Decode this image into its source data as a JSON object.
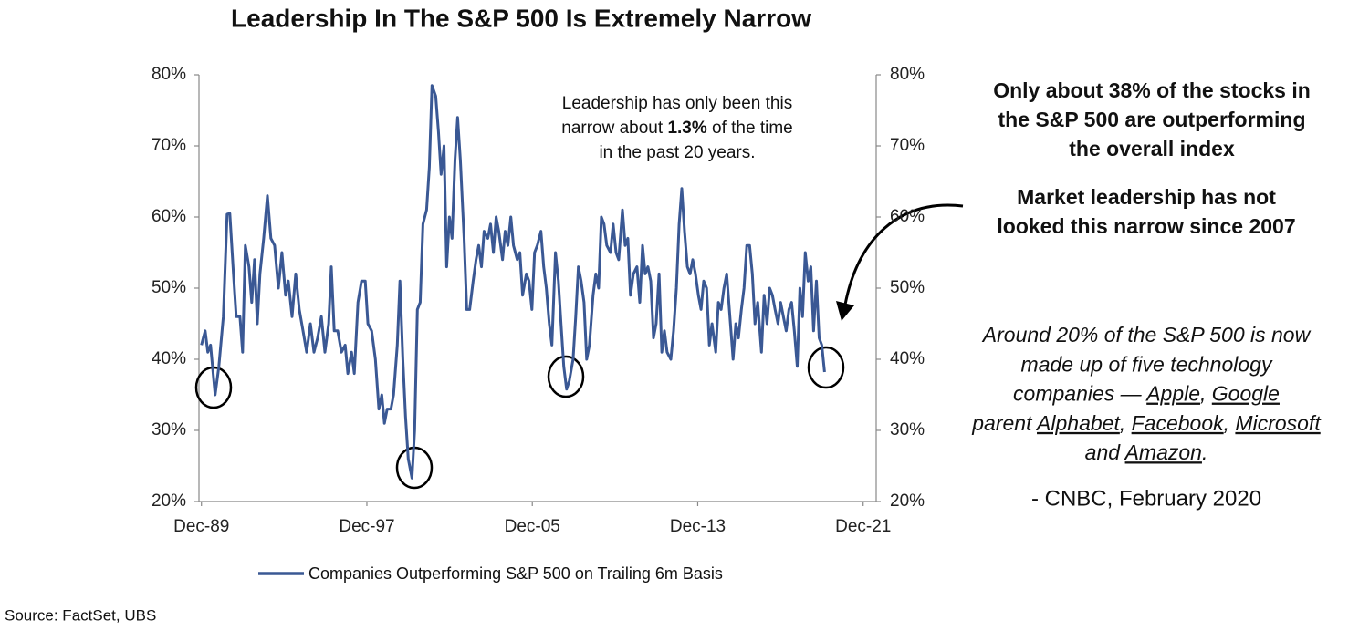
{
  "chart_data": {
    "type": "line",
    "title": "Leadership In The S&P 500 Is Extremely Narrow",
    "xlim": [
      1989.8,
      2022.55
    ],
    "xticks": [
      {
        "value": 1989.92,
        "label": "Dec-89"
      },
      {
        "value": 1997.92,
        "label": "Dec-97"
      },
      {
        "value": 2005.92,
        "label": "Dec-05"
      },
      {
        "value": 2013.92,
        "label": "Dec-13"
      },
      {
        "value": 2021.92,
        "label": "Dec-21"
      }
    ],
    "ylim": [
      20,
      80
    ],
    "yticks": [
      {
        "value": 20,
        "label": "20%"
      },
      {
        "value": 30,
        "label": "30%"
      },
      {
        "value": 40,
        "label": "40%"
      },
      {
        "value": 50,
        "label": "50%"
      },
      {
        "value": 60,
        "label": "60%"
      },
      {
        "value": 70,
        "label": "70%"
      },
      {
        "value": 80,
        "label": "80%"
      }
    ],
    "y2lim": [
      20,
      80
    ],
    "y2ticks": [
      {
        "value": 20,
        "label": "20%"
      },
      {
        "value": 30,
        "label": "30%"
      },
      {
        "value": 40,
        "label": "40%"
      },
      {
        "value": 50,
        "label": "50%"
      },
      {
        "value": 60,
        "label": "60%"
      },
      {
        "value": 70,
        "label": "70%"
      },
      {
        "value": 80,
        "label": "80%"
      }
    ],
    "grid": false,
    "legend": "bottom",
    "x": [
      1989.92,
      1990.1,
      1990.23,
      1990.36,
      1990.58,
      1990.76,
      1990.98,
      1991.16,
      1991.29,
      1991.47,
      1991.6,
      1991.78,
      1991.91,
      1992.04,
      1992.22,
      1992.35,
      1992.49,
      1992.62,
      1992.75,
      1992.93,
      1993.11,
      1993.28,
      1993.46,
      1993.64,
      1993.81,
      1993.99,
      1994.12,
      1994.3,
      1994.48,
      1994.65,
      1994.83,
      1995.01,
      1995.19,
      1995.36,
      1995.54,
      1995.72,
      1995.89,
      1996.07,
      1996.2,
      1996.34,
      1996.51,
      1996.69,
      1996.87,
      1997.0,
      1997.18,
      1997.31,
      1997.49,
      1997.66,
      1997.84,
      1997.97,
      1998.15,
      1998.33,
      1998.5,
      1998.64,
      1998.77,
      1998.9,
      1999.08,
      1999.21,
      1999.39,
      1999.52,
      1999.66,
      1999.79,
      1999.92,
      2000.1,
      2000.23,
      2000.36,
      2000.5,
      2000.63,
      2000.81,
      2000.94,
      2001.07,
      2001.25,
      2001.38,
      2001.51,
      2001.65,
      2001.78,
      2001.91,
      2002.04,
      2002.18,
      2002.31,
      2002.44,
      2002.62,
      2002.75,
      2002.89,
      2003.06,
      2003.2,
      2003.33,
      2003.46,
      2003.59,
      2003.77,
      2003.9,
      2004.04,
      2004.17,
      2004.3,
      2004.48,
      2004.61,
      2004.74,
      2004.88,
      2005.01,
      2005.19,
      2005.32,
      2005.45,
      2005.63,
      2005.76,
      2005.9,
      2006.03,
      2006.16,
      2006.34,
      2006.47,
      2006.6,
      2006.74,
      2006.87,
      2007.04,
      2007.18,
      2007.31,
      2007.44,
      2007.58,
      2007.71,
      2007.89,
      2008.02,
      2008.15,
      2008.28,
      2008.42,
      2008.55,
      2008.68,
      2008.86,
      2008.99,
      2009.13,
      2009.26,
      2009.39,
      2009.52,
      2009.7,
      2009.83,
      2009.97,
      2010.1,
      2010.28,
      2010.41,
      2010.54,
      2010.67,
      2010.81,
      2010.98,
      2011.12,
      2011.25,
      2011.38,
      2011.51,
      2011.65,
      2011.78,
      2011.91,
      2012.05,
      2012.18,
      2012.31,
      2012.44,
      2012.62,
      2012.75,
      2012.89,
      2013.02,
      2013.15,
      2013.28,
      2013.42,
      2013.55,
      2013.68,
      2013.81,
      2013.95,
      2014.08,
      2014.21,
      2014.35,
      2014.48,
      2014.61,
      2014.79,
      2014.92,
      2015.05,
      2015.19,
      2015.32,
      2015.5,
      2015.63,
      2015.76,
      2015.89,
      2016.03,
      2016.16,
      2016.29,
      2016.43,
      2016.56,
      2016.69,
      2016.82,
      2017.0,
      2017.13,
      2017.27,
      2017.4,
      2017.53,
      2017.66,
      2017.8,
      2017.93,
      2018.06,
      2018.2,
      2018.33,
      2018.46,
      2018.59,
      2018.73,
      2018.86,
      2018.99,
      2019.12,
      2019.26,
      2019.39,
      2019.52,
      2019.66,
      2019.79,
      2019.92,
      2020.05
    ],
    "series": [
      {
        "name": "Companies Outperforming S&P 500 on Trailing 6m Basis",
        "color": "#3a5894",
        "values": [
          42,
          44,
          41,
          42,
          35,
          39,
          46,
          60.4,
          60.5,
          52,
          46,
          46,
          41,
          56,
          53,
          48,
          54,
          45,
          52,
          57,
          63,
          57,
          56,
          50,
          55,
          49,
          51,
          46,
          52,
          47,
          44,
          41,
          45,
          41,
          43,
          46,
          41,
          45,
          53,
          44,
          44,
          41,
          42,
          38,
          41,
          38,
          48,
          51,
          51,
          45,
          44,
          40,
          33,
          35,
          31,
          33,
          33,
          35,
          42,
          51,
          40,
          32,
          26,
          23.3,
          30,
          47,
          48,
          59,
          61,
          67,
          78.5,
          77,
          72,
          66,
          70,
          53,
          60,
          57,
          68,
          74,
          68,
          57,
          47,
          47,
          51,
          54,
          56,
          53,
          58,
          57,
          59,
          55,
          60,
          58,
          54,
          58,
          56,
          60,
          56,
          54,
          55,
          49,
          52,
          51,
          47,
          55,
          56,
          58,
          53,
          50,
          45,
          42,
          55,
          51,
          45,
          39,
          35.8,
          37,
          40,
          46,
          53,
          51,
          48,
          40,
          42,
          49,
          52,
          50,
          60,
          59,
          56,
          55,
          59,
          55,
          54,
          61,
          56,
          57,
          49,
          52,
          53,
          48,
          56,
          52,
          53,
          51,
          43,
          45,
          52,
          41,
          44,
          41,
          40,
          44,
          50,
          59,
          64,
          58,
          53,
          52,
          54,
          52,
          49,
          47,
          51,
          50,
          42,
          45,
          41,
          48,
          47,
          50,
          52,
          45,
          40,
          45,
          43,
          47,
          50,
          56,
          56,
          52,
          45,
          48,
          41,
          49,
          45,
          50,
          49,
          47,
          45,
          48,
          46,
          44,
          47,
          48,
          44,
          39,
          50,
          46,
          55,
          51,
          53,
          44,
          51,
          43,
          42,
          38.2
        ]
      }
    ],
    "annotation": [
      "Leadership has only been this",
      [
        {
          "text": "narrow about "
        },
        {
          "text": "1.3%",
          "bold": true
        },
        {
          "text": " of the time"
        }
      ],
      "in the past 20 years."
    ]
  },
  "headline": [
    "Only about 38% of the stocks in",
    "the S&P 500 are outperforming",
    "the overall index"
  ],
  "subheadline": [
    "Market leadership has not",
    "looked this narrow since 2007"
  ],
  "quote": [
    "Around 20% of the S&P 500 is now",
    "made up of five technology",
    [
      {
        "text": "companies — "
      },
      {
        "text": "Apple",
        "underline": true
      },
      {
        "text": ", "
      },
      {
        "text": "Google",
        "underline": true
      }
    ],
    [
      {
        "text": "parent "
      },
      {
        "text": "Alphabet",
        "underline": true
      },
      {
        "text": ", "
      },
      {
        "text": "Facebook",
        "underline": true
      },
      {
        "text": ", "
      },
      {
        "text": "Microsoft",
        "underline": true
      }
    ],
    [
      {
        "text": "and "
      },
      {
        "text": "Amazon",
        "underline": true
      },
      {
        "text": "."
      }
    ]
  ],
  "attribution": "- CNBC, February 2020",
  "source": "Source:  FactSet, UBS"
}
